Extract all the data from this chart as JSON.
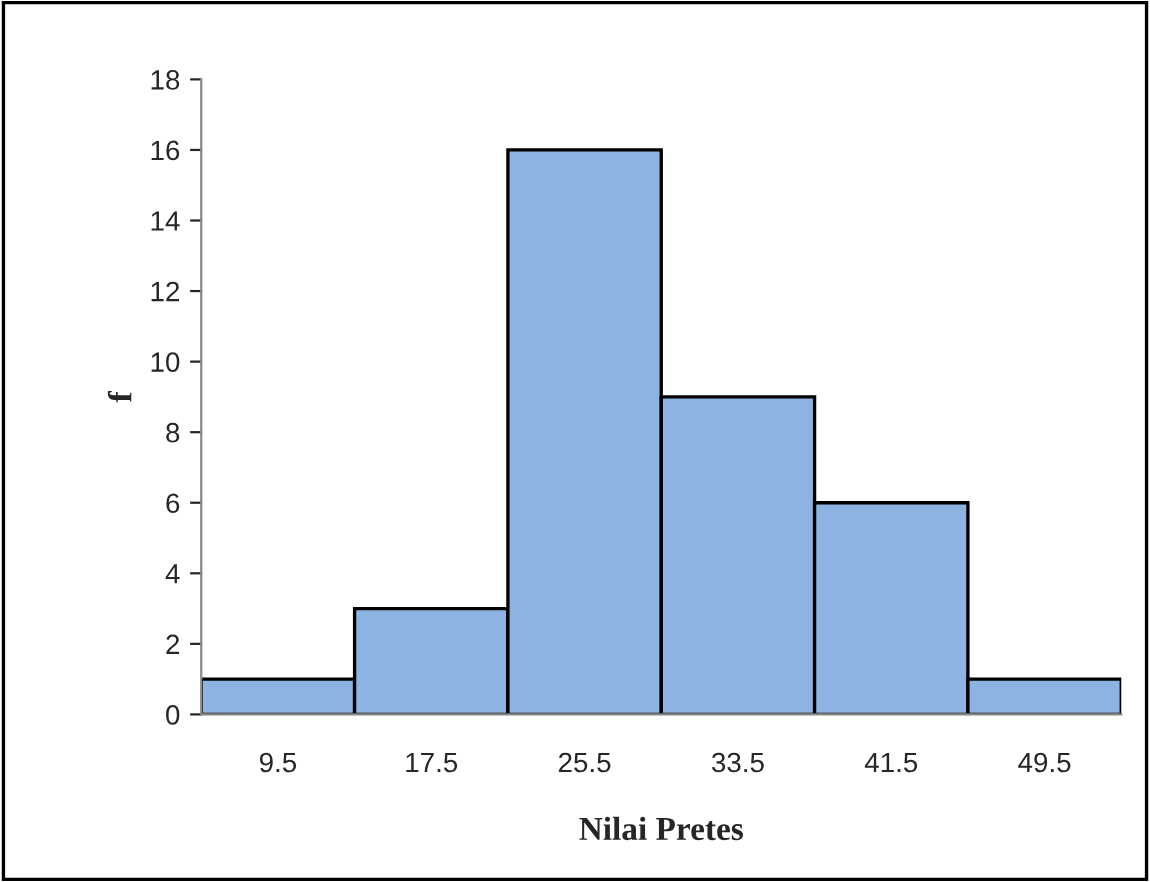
{
  "chart_data": {
    "type": "bar",
    "categories": [
      "9.5",
      "17.5",
      "25.5",
      "33.5",
      "41.5",
      "49.5"
    ],
    "values": [
      1,
      3,
      16,
      9,
      6,
      1
    ],
    "color": "#8db3e2",
    "xlabel": "Nilai Pretes",
    "ylabel": "f",
    "ylim": [
      0,
      18
    ],
    "yticks": [
      0,
      2,
      4,
      6,
      8,
      10,
      12,
      14,
      16,
      18
    ],
    "grid": false,
    "legend": false
  }
}
